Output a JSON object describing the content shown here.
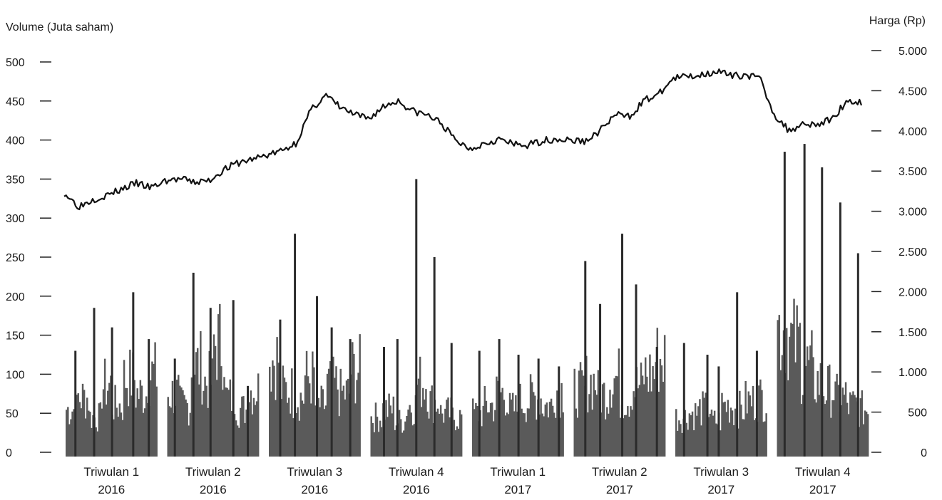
{
  "chart_data": {
    "type": "bar",
    "ylabel_left": "Volume (Juta saham)",
    "ylabel_right": "Harga (Rp)",
    "left_axis": {
      "ylim": [
        0,
        500
      ],
      "ticks": [
        "500",
        "450",
        "400",
        "350",
        "300",
        "250",
        "200",
        "150",
        "100",
        "50",
        "0"
      ],
      "tick_values": [
        500,
        450,
        400,
        350,
        300,
        250,
        200,
        150,
        100,
        50,
        0
      ]
    },
    "right_axis": {
      "ylim": [
        0,
        5000
      ],
      "ticks": [
        "5.000",
        "4.500",
        "4.000",
        "3.500",
        "3.000",
        "2.500",
        "2.000",
        "1.500",
        "1.000",
        "500",
        "0"
      ],
      "tick_values": [
        5000,
        4500,
        4000,
        3500,
        3000,
        2500,
        2000,
        1500,
        1000,
        500,
        0
      ]
    },
    "grid": false,
    "colors": {
      "bars": "#5a5a5a",
      "bar_spikes": "#2b2b2b",
      "line": "#111111"
    },
    "quarters": [
      {
        "line1": "Triwulan 1",
        "line2": "2016",
        "volume_base": [
          55,
          70,
          45,
          85,
          60,
          95,
          75,
          100
        ],
        "volume_peaks": [
          130,
          185,
          160,
          205,
          145
        ]
      },
      {
        "line1": "Triwulan 2",
        "line2": "2016",
        "volume_base": [
          75,
          60,
          110,
          90,
          140,
          70,
          55,
          80
        ],
        "volume_peaks": [
          120,
          230,
          185,
          195,
          85
        ]
      },
      {
        "line1": "Triwulan 3",
        "line2": "2016",
        "volume_base": [
          120,
          80,
          70,
          95,
          60,
          85,
          75,
          105
        ],
        "volume_peaks": [
          170,
          280,
          200,
          160,
          145
        ]
      },
      {
        "line1": "Triwulan 4",
        "line2": "2016",
        "volume_base": [
          45,
          55,
          40,
          60,
          90,
          65,
          50,
          45
        ],
        "volume_peaks": [
          135,
          145,
          350,
          250,
          140
        ]
      },
      {
        "line1": "Triwulan 1",
        "line2": "2017",
        "volume_base": [
          50,
          60,
          75,
          55,
          65,
          70,
          60,
          80
        ],
        "volume_peaks": [
          130,
          145,
          125,
          120,
          110
        ]
      },
      {
        "line1": "Triwulan 2",
        "line2": "2017",
        "volume_base": [
          80,
          90,
          75,
          95,
          70,
          85,
          100,
          120
        ],
        "volume_peaks": [
          245,
          190,
          280,
          215,
          135
        ]
      },
      {
        "line1": "Triwulan 3",
        "line2": "2017",
        "volume_base": [
          45,
          50,
          55,
          40,
          60,
          55,
          65,
          70
        ],
        "volume_peaks": [
          140,
          125,
          110,
          205,
          130
        ]
      },
      {
        "line1": "Triwulan 4",
        "line2": "2017",
        "volume_base": [
          160,
          140,
          110,
          90,
          80,
          70,
          60,
          55
        ],
        "volume_peaks": [
          385,
          395,
          365,
          320,
          255
        ]
      }
    ],
    "price_series": {
      "name": "",
      "values": [
        3230,
        3060,
        3150,
        3200,
        3280,
        3350,
        3290,
        3380,
        3400,
        3360,
        3380,
        3520,
        3600,
        3650,
        3700,
        3750,
        3850,
        4250,
        4450,
        4300,
        4200,
        4150,
        4300,
        4380,
        4250,
        4200,
        4100,
        3880,
        3780,
        3850,
        3900,
        3830,
        3820,
        3880,
        3900,
        3880,
        3870,
        4010,
        4200,
        4180,
        4380,
        4450,
        4650,
        4680,
        4700,
        4750,
        4680,
        4700,
        4650,
        4200,
        4000,
        4100,
        4080,
        4150,
        4380,
        4350
      ]
    }
  }
}
